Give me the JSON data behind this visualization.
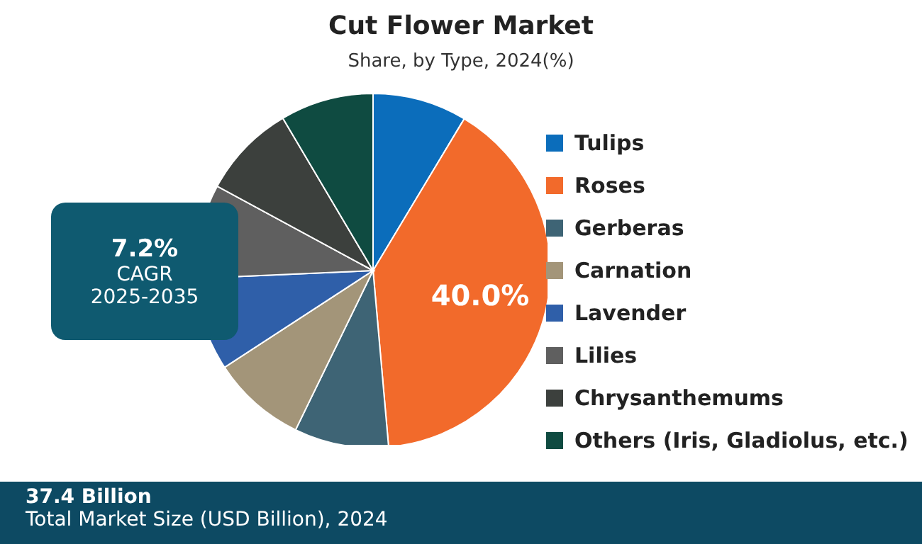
{
  "chart_data": {
    "type": "pie",
    "title": "Cut Flower Market",
    "subtitle": "Share, by Type, 2024(%)",
    "categories": [
      "Tulips",
      "Roses",
      "Gerberas",
      "Carnation",
      "Lavender",
      "Lilies",
      "Chrysanthemums",
      "Others (Iris, Gladiolus, etc.)"
    ],
    "values": [
      8.6,
      40.0,
      8.6,
      8.6,
      8.5,
      8.6,
      8.6,
      8.5
    ],
    "colors": [
      "#0b6dbb",
      "#f26a2b",
      "#3e6475",
      "#a39579",
      "#2f5fa9",
      "#5f5f5f",
      "#3c403d",
      "#0f4b41"
    ],
    "value_labels": [
      null,
      "40.0%",
      null,
      null,
      null,
      null,
      null,
      null
    ],
    "legend": "right",
    "annotations": [
      "7.2%",
      "CAGR",
      "2025-2035",
      "37.4 Billion",
      "Total Market Size  (USD Billion), 2024"
    ]
  }
}
